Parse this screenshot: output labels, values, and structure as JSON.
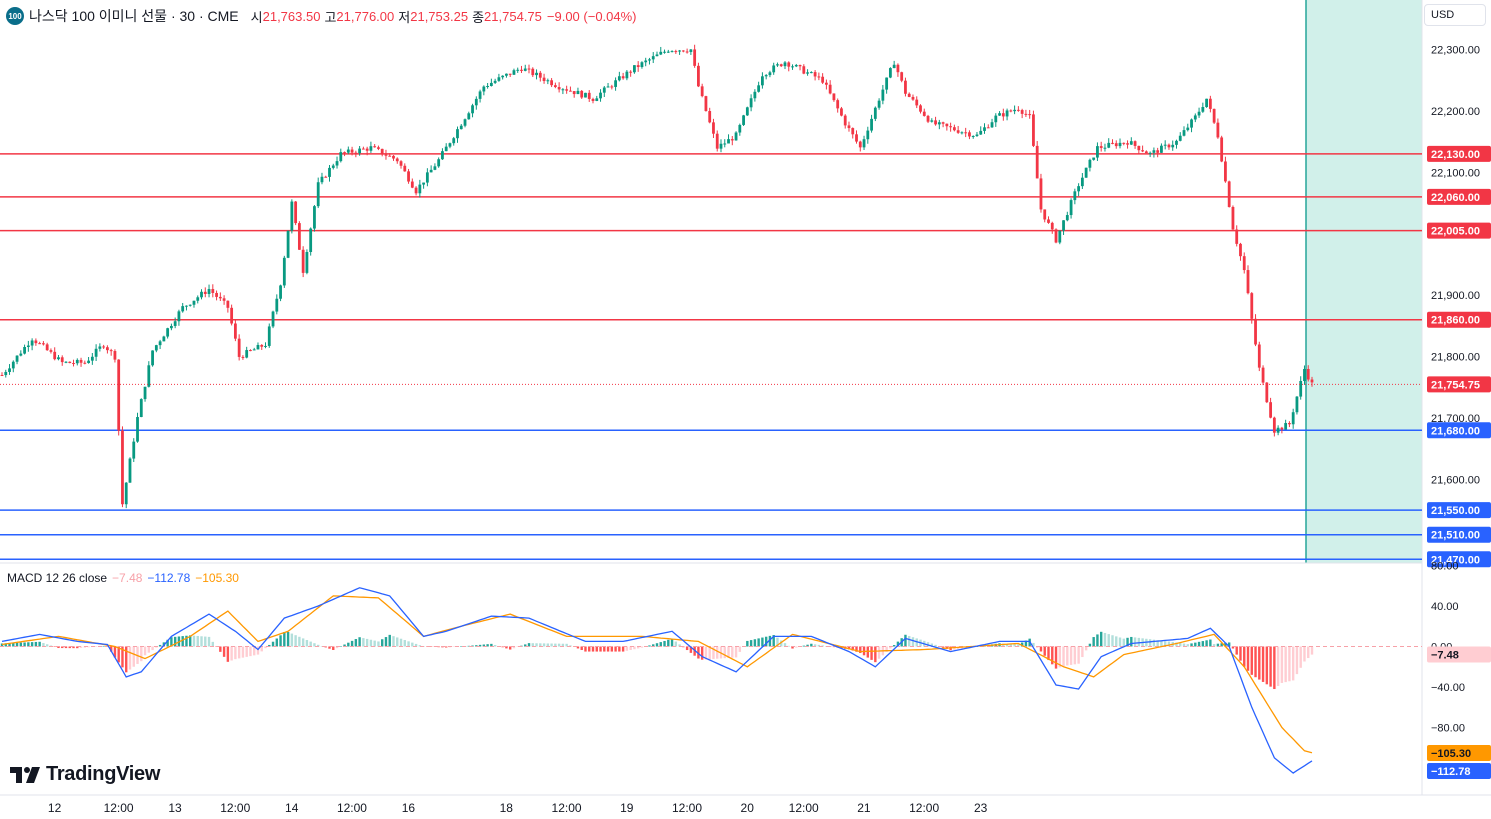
{
  "header": {
    "symbol_badge": "100",
    "title": "나스닥 100 이미니 선물 · 30 · CME",
    "open_label": "시",
    "open": "21,763.50",
    "high_label": "고",
    "high": "21,776.00",
    "low_label": "저",
    "low": "21,753.25",
    "close_label": "종",
    "close": "21,754.75",
    "change": "−9.00 (−0.04%)"
  },
  "currency_button": "USD",
  "brand": "TradingView",
  "macd_legend": {
    "name": "MACD 12 26 close",
    "hist": "−7.48",
    "macd": "−112.78",
    "signal": "−105.30"
  },
  "colors": {
    "up": "#089981",
    "down": "#f23645",
    "resistance": "#f23645",
    "support": "#2962ff",
    "macd_line": "#2962ff",
    "signal_line": "#ff9800",
    "hist_up_strong": "#26a69a",
    "hist_up_weak": "#b2dfdb",
    "hist_down_strong": "#ff5252",
    "hist_down_weak": "#ffcdd2",
    "shade": "#d1f0ea"
  },
  "chart_data": [
    {
      "type": "candlestick",
      "interval": "30",
      "ylim": [
        21430,
        22335
      ],
      "y_ticks": [
        "22,300.00",
        "22,200.00",
        "22,100.00",
        "21,900.00",
        "21,800.00",
        "21,700.00",
        "21,600.00"
      ],
      "y_tick_values": [
        22300,
        22200,
        22100,
        21900,
        21800,
        21700,
        21600
      ],
      "x_ticks": [
        "12",
        "12:00",
        "13",
        "12:00",
        "14",
        "12:00",
        "16",
        "18",
        "12:00",
        "19",
        "12:00",
        "20",
        "12:00",
        "21",
        "12:00",
        "23"
      ],
      "last_price": 21754.75,
      "last_price_label": "21,754.75",
      "horizontal_lines": [
        {
          "value": 22130,
          "label": "22,130.00",
          "kind": "resistance"
        },
        {
          "value": 22060,
          "label": "22,060.00",
          "kind": "resistance"
        },
        {
          "value": 22005,
          "label": "22,005.00",
          "kind": "resistance"
        },
        {
          "value": 21860,
          "label": "21,860.00",
          "kind": "resistance"
        },
        {
          "value": 21680,
          "label": "21,680.00",
          "kind": "support"
        },
        {
          "value": 21550,
          "label": "21,550.00",
          "kind": "support"
        },
        {
          "value": 21510,
          "label": "21,510.00",
          "kind": "support"
        },
        {
          "value": 21470,
          "label": "21,470.00",
          "kind": "support"
        }
      ],
      "path_keypoints": [
        {
          "bar": 0,
          "price": 21770
        },
        {
          "bar": 8,
          "price": 21830
        },
        {
          "bar": 16,
          "price": 21790
        },
        {
          "bar": 22,
          "price": 21790
        },
        {
          "bar": 27,
          "price": 21820
        },
        {
          "bar": 30,
          "price": 21800
        },
        {
          "bar": 32,
          "price": 21560
        },
        {
          "bar": 36,
          "price": 21700
        },
        {
          "bar": 40,
          "price": 21810
        },
        {
          "bar": 48,
          "price": 21880
        },
        {
          "bar": 55,
          "price": 21910
        },
        {
          "bar": 60,
          "price": 21880
        },
        {
          "bar": 63,
          "price": 21800
        },
        {
          "bar": 70,
          "price": 21820
        },
        {
          "bar": 74,
          "price": 21920
        },
        {
          "bar": 77,
          "price": 22050
        },
        {
          "bar": 80,
          "price": 21940
        },
        {
          "bar": 84,
          "price": 22080
        },
        {
          "bar": 90,
          "price": 22130
        },
        {
          "bar": 98,
          "price": 22140
        },
        {
          "bar": 105,
          "price": 22120
        },
        {
          "bar": 110,
          "price": 22070
        },
        {
          "bar": 116,
          "price": 22120
        },
        {
          "bar": 120,
          "price": 22160
        },
        {
          "bar": 128,
          "price": 22240
        },
        {
          "bar": 138,
          "price": 22270
        },
        {
          "bar": 148,
          "price": 22240
        },
        {
          "bar": 157,
          "price": 22220
        },
        {
          "bar": 168,
          "price": 22270
        },
        {
          "bar": 177,
          "price": 22300
        },
        {
          "bar": 183,
          "price": 22300
        },
        {
          "bar": 185,
          "price": 22240
        },
        {
          "bar": 190,
          "price": 22140
        },
        {
          "bar": 195,
          "price": 22160
        },
        {
          "bar": 202,
          "price": 22260
        },
        {
          "bar": 208,
          "price": 22280
        },
        {
          "bar": 218,
          "price": 22250
        },
        {
          "bar": 224,
          "price": 22180
        },
        {
          "bar": 228,
          "price": 22140
        },
        {
          "bar": 233,
          "price": 22220
        },
        {
          "bar": 237,
          "price": 22280
        },
        {
          "bar": 240,
          "price": 22230
        },
        {
          "bar": 247,
          "price": 22180
        },
        {
          "bar": 253,
          "price": 22170
        },
        {
          "bar": 259,
          "price": 22160
        },
        {
          "bar": 264,
          "price": 22190
        },
        {
          "bar": 270,
          "price": 22205
        },
        {
          "bar": 273,
          "price": 22190
        },
        {
          "bar": 276,
          "price": 22040
        },
        {
          "bar": 280,
          "price": 21990
        },
        {
          "bar": 286,
          "price": 22080
        },
        {
          "bar": 291,
          "price": 22140
        },
        {
          "bar": 299,
          "price": 22150
        },
        {
          "bar": 305,
          "price": 22130
        },
        {
          "bar": 312,
          "price": 22150
        },
        {
          "bar": 317,
          "price": 22190
        },
        {
          "bar": 320,
          "price": 22220
        },
        {
          "bar": 323,
          "price": 22160
        },
        {
          "bar": 327,
          "price": 22010
        },
        {
          "bar": 330,
          "price": 21940
        },
        {
          "bar": 334,
          "price": 21780
        },
        {
          "bar": 338,
          "price": 21680
        },
        {
          "bar": 342,
          "price": 21690
        },
        {
          "bar": 346,
          "price": 21780
        },
        {
          "bar": 348,
          "price": 21755
        }
      ],
      "bar_count": 349
    },
    {
      "type": "macd",
      "ylim": [
        -120,
        84
      ],
      "y_ticks": [
        "40.00",
        "0.00",
        "−40.00",
        "−80.00"
      ],
      "y_tick_values": [
        40,
        0,
        -40,
        -80
      ],
      "top_tick": "80.00",
      "macd_last": -112.78,
      "macd_label": "−112.78",
      "signal_last": -105.3,
      "signal_label": "−105.30",
      "hist_last": -7.48,
      "hist_label": "−7.48",
      "macd_keypoints": [
        {
          "bar": 0,
          "value": 5
        },
        {
          "bar": 10,
          "value": 12
        },
        {
          "bar": 20,
          "value": 5
        },
        {
          "bar": 28,
          "value": 2
        },
        {
          "bar": 33,
          "value": -30
        },
        {
          "bar": 37,
          "value": -25
        },
        {
          "bar": 45,
          "value": 10
        },
        {
          "bar": 55,
          "value": 32
        },
        {
          "bar": 62,
          "value": 15
        },
        {
          "bar": 68,
          "value": -3
        },
        {
          "bar": 75,
          "value": 28
        },
        {
          "bar": 84,
          "value": 40
        },
        {
          "bar": 95,
          "value": 58
        },
        {
          "bar": 103,
          "value": 50
        },
        {
          "bar": 112,
          "value": 10
        },
        {
          "bar": 118,
          "value": 15
        },
        {
          "bar": 130,
          "value": 30
        },
        {
          "bar": 140,
          "value": 28
        },
        {
          "bar": 155,
          "value": 5
        },
        {
          "bar": 165,
          "value": 5
        },
        {
          "bar": 178,
          "value": 15
        },
        {
          "bar": 186,
          "value": -10
        },
        {
          "bar": 195,
          "value": -25
        },
        {
          "bar": 205,
          "value": 10
        },
        {
          "bar": 215,
          "value": 10
        },
        {
          "bar": 225,
          "value": -5
        },
        {
          "bar": 232,
          "value": -20
        },
        {
          "bar": 240,
          "value": 8
        },
        {
          "bar": 252,
          "value": -5
        },
        {
          "bar": 265,
          "value": 5
        },
        {
          "bar": 273,
          "value": 5
        },
        {
          "bar": 280,
          "value": -38
        },
        {
          "bar": 286,
          "value": -42
        },
        {
          "bar": 292,
          "value": -10
        },
        {
          "bar": 300,
          "value": 3
        },
        {
          "bar": 315,
          "value": 8
        },
        {
          "bar": 321,
          "value": 18
        },
        {
          "bar": 326,
          "value": 0
        },
        {
          "bar": 332,
          "value": -60
        },
        {
          "bar": 338,
          "value": -110
        },
        {
          "bar": 343,
          "value": -125
        },
        {
          "bar": 348,
          "value": -113
        }
      ],
      "signal_keypoints": [
        {
          "bar": 0,
          "value": 2
        },
        {
          "bar": 15,
          "value": 10
        },
        {
          "bar": 30,
          "value": 0
        },
        {
          "bar": 38,
          "value": -12
        },
        {
          "bar": 50,
          "value": 10
        },
        {
          "bar": 60,
          "value": 35
        },
        {
          "bar": 68,
          "value": 5
        },
        {
          "bar": 76,
          "value": 15
        },
        {
          "bar": 88,
          "value": 50
        },
        {
          "bar": 100,
          "value": 48
        },
        {
          "bar": 112,
          "value": 10
        },
        {
          "bar": 122,
          "value": 20
        },
        {
          "bar": 135,
          "value": 32
        },
        {
          "bar": 150,
          "value": 10
        },
        {
          "bar": 170,
          "value": 10
        },
        {
          "bar": 185,
          "value": 5
        },
        {
          "bar": 198,
          "value": -20
        },
        {
          "bar": 210,
          "value": 12
        },
        {
          "bar": 228,
          "value": -5
        },
        {
          "bar": 245,
          "value": -3
        },
        {
          "bar": 270,
          "value": 3
        },
        {
          "bar": 282,
          "value": -20
        },
        {
          "bar": 290,
          "value": -30
        },
        {
          "bar": 298,
          "value": -8
        },
        {
          "bar": 312,
          "value": 3
        },
        {
          "bar": 322,
          "value": 12
        },
        {
          "bar": 330,
          "value": -20
        },
        {
          "bar": 340,
          "value": -80
        },
        {
          "bar": 346,
          "value": -103
        },
        {
          "bar": 348,
          "value": -105
        }
      ]
    }
  ]
}
